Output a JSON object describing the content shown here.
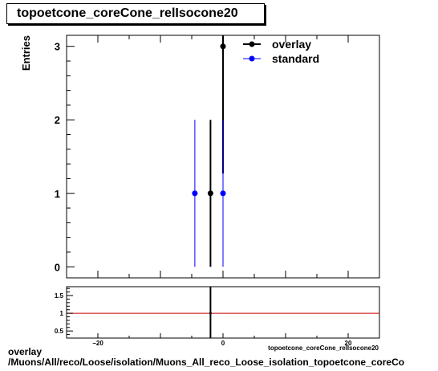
{
  "chart_data": [
    {
      "type": "scatter",
      "title": "topoetcone_coreCone_relIsocone20",
      "ylabel": "Entries",
      "xlim": [
        -25,
        25
      ],
      "ylim": [
        -0.15,
        3.15
      ],
      "yticks": [
        0,
        1,
        2,
        3
      ],
      "grid": false,
      "legend_position": "top-right",
      "series": [
        {
          "name": "overlay",
          "color": "#000000",
          "points": [
            {
              "x": -2,
              "y": 1,
              "yerr_low": 1,
              "yerr_high": 1
            },
            {
              "x": 0,
              "y": 3,
              "yerr_low": 1.73,
              "yerr_high": 1.73
            }
          ]
        },
        {
          "name": "standard",
          "color": "#0000ff",
          "points": [
            {
              "x": -4.5,
              "y": 1,
              "yerr_low": 1,
              "yerr_high": 1
            },
            {
              "x": 0,
              "y": 1,
              "yerr_low": 1,
              "yerr_high": 1
            }
          ]
        }
      ]
    },
    {
      "type": "line",
      "xlim": [
        -25,
        25
      ],
      "ylim": [
        0.3,
        1.75
      ],
      "yticks": [
        "0.5",
        "1",
        "1.5"
      ],
      "xticks": [
        "−20",
        "0",
        "20"
      ],
      "xlabel": "topoetcone_coreCone_relIsocone20",
      "reference_line": {
        "y": 1,
        "color": "#cc0000"
      },
      "series": [
        {
          "name": "ratio",
          "color": "#000000",
          "points": [
            {
              "x": -2,
              "y": 1,
              "yerr_low": 1,
              "yerr_high": 1
            }
          ]
        }
      ]
    }
  ],
  "footer": {
    "line1": "overlay",
    "line2": "/Muons/All/reco/Loose/isolation/Muons_All_reco_Loose_isolation_topoetcone_coreCo"
  }
}
